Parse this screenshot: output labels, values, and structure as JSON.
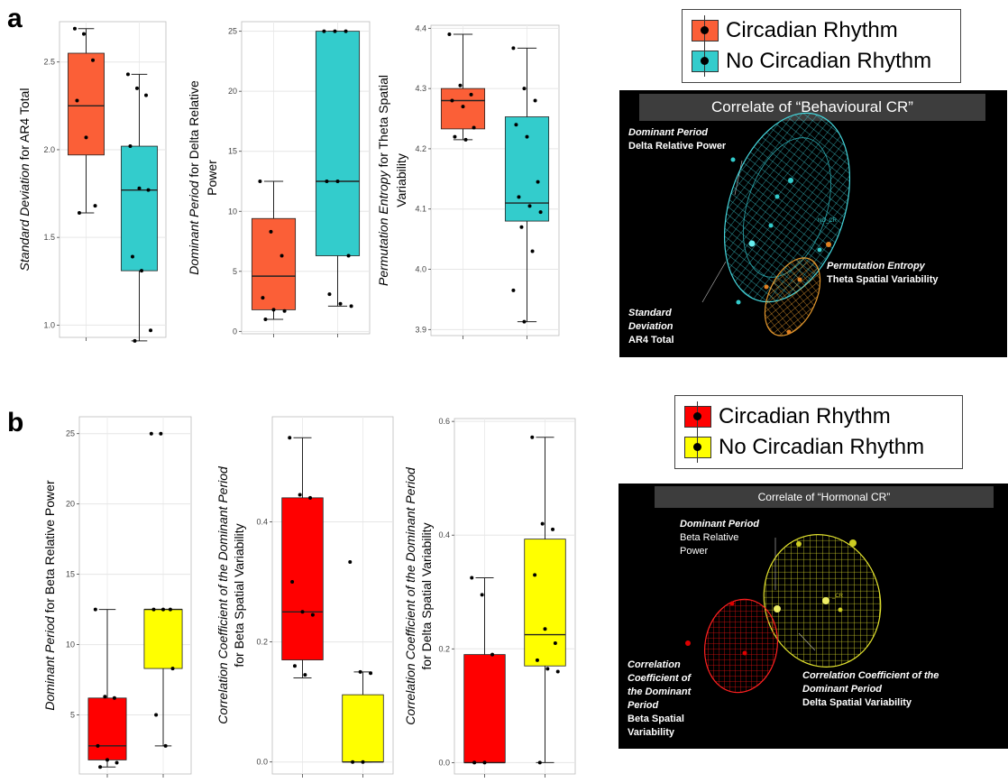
{
  "panels": {
    "a": {
      "letter": "a"
    },
    "b": {
      "letter": "b"
    }
  },
  "colors": {
    "orange": "#fb5f37",
    "teal": "#33cccc",
    "red": "#ff0000",
    "yellow": "#ffff00"
  },
  "legend_a": {
    "items": [
      {
        "label": "Circadian Rhythm",
        "color": "#fb5f37"
      },
      {
        "label": "No Circadian Rhythm",
        "color": "#33cccc"
      }
    ]
  },
  "legend_b": {
    "items": [
      {
        "label": "Circadian Rhythm",
        "color": "#ff0000"
      },
      {
        "label": "No Circadian Rhythm",
        "color": "#ffff00"
      }
    ]
  },
  "viz_a": {
    "title": "Correlate of “Behavioural CR”",
    "label_top_italic": "Dominant Period",
    "label_top": "Delta Relative Power",
    "label_right_italic": "Permutation Entropy",
    "label_right": "Theta Spatial Variability",
    "label_left_italic_1": "Standard",
    "label_left_italic_2": "Deviation",
    "label_left": "AR4 Total",
    "tag": "NO_CR"
  },
  "viz_b": {
    "title": "Correlate of “Hormonal CR”",
    "label_top_italic": "Dominant Period",
    "label_top_1": "Beta Relative",
    "label_top_2": "Power",
    "label_right_italic_1": "Correlation Coefficient of the",
    "label_right_italic_2": "Dominant Period",
    "label_right": "Delta Spatial Variability",
    "label_left_italic_1": "Correlation",
    "label_left_italic_2": "Coefficient of",
    "label_left_italic_3": "the Dominant",
    "label_left_italic_4": "Period",
    "label_left_1": "Beta Spatial",
    "label_left_2": "Variability",
    "tag": "_CR"
  },
  "chart_data": [
    {
      "id": "a1",
      "type": "box",
      "ylabel_italic": "Standard Deviation",
      "ylabel_rest": " for AR4 Total",
      "ylim": [
        0.93,
        2.73
      ],
      "yticks": [
        1.0,
        1.5,
        2.0,
        2.5
      ],
      "tick_labels": [
        "1.0",
        "1.5",
        "2.0",
        "2.5"
      ],
      "series": [
        {
          "color": "#fb5f37",
          "whislo": 1.64,
          "q1": 1.97,
          "med": 2.25,
          "q3": 2.55,
          "whishi": 2.69,
          "points": [
            2.69,
            2.66,
            2.51,
            2.28,
            2.07,
            1.68,
            1.64
          ]
        },
        {
          "color": "#33cccc",
          "whislo": 0.91,
          "q1": 1.31,
          "med": 1.77,
          "q3": 2.02,
          "whishi": 2.43,
          "points": [
            2.43,
            2.35,
            2.31,
            2.02,
            1.78,
            1.77,
            1.39,
            1.31,
            0.97,
            0.91
          ]
        }
      ]
    },
    {
      "id": "a2",
      "type": "box",
      "ylabel_italic": "Dominant Period",
      "ylabel_rest": " for Delta Relative Power",
      "ylim": [
        -0.2,
        25.8
      ],
      "yticks": [
        0,
        5,
        10,
        15,
        20,
        25
      ],
      "tick_labels": [
        "0",
        "5",
        "10",
        "15",
        "20",
        "25"
      ],
      "series": [
        {
          "color": "#fb5f37",
          "whislo": 1.0,
          "q1": 1.8,
          "med": 4.6,
          "q3": 9.4,
          "whishi": 12.5,
          "points": [
            12.5,
            8.3,
            6.3,
            2.8,
            1.8,
            1.7,
            1.0
          ]
        },
        {
          "color": "#33cccc",
          "whislo": 2.1,
          "q1": 6.3,
          "med": 12.5,
          "q3": 25.0,
          "whishi": 25.0,
          "points": [
            25.0,
            25.0,
            25.0,
            12.5,
            12.5,
            6.3,
            3.1,
            2.3,
            2.1
          ]
        }
      ]
    },
    {
      "id": "a3",
      "type": "box",
      "ylabel_italic": "Permutation Entropy",
      "ylabel_rest": " for Theta Spatial Variability",
      "ylim": [
        3.89,
        4.405
      ],
      "yticks": [
        3.9,
        4.0,
        4.1,
        4.2,
        4.3,
        4.4
      ],
      "tick_labels": [
        "3.9",
        "4.0",
        "4.1",
        "4.2",
        "4.3",
        "4.4"
      ],
      "series": [
        {
          "color": "#fb5f37",
          "whislo": 4.215,
          "q1": 4.233,
          "med": 4.28,
          "q3": 4.3,
          "whishi": 4.39,
          "points": [
            4.39,
            4.305,
            4.29,
            4.28,
            4.27,
            4.235,
            4.22,
            4.215
          ]
        },
        {
          "color": "#33cccc",
          "whislo": 3.913,
          "q1": 4.08,
          "med": 4.11,
          "q3": 4.253,
          "whishi": 4.367,
          "points": [
            4.367,
            4.3,
            4.28,
            4.24,
            4.22,
            4.145,
            4.12,
            4.105,
            4.095,
            4.07,
            4.03,
            3.965,
            3.913
          ]
        }
      ]
    },
    {
      "id": "b1",
      "type": "box",
      "ylabel_italic": "Dominant Period",
      "ylabel_rest": " for Beta Relative Power",
      "ylim": [
        0.8,
        26.2
      ],
      "yticks": [
        5,
        10,
        15,
        20,
        25
      ],
      "tick_labels": [
        "5",
        "10",
        "15",
        "20",
        "25"
      ],
      "series": [
        {
          "color": "#ff0000",
          "whislo": 1.3,
          "q1": 1.8,
          "med": 2.8,
          "q3": 6.2,
          "whishi": 12.5,
          "points": [
            12.5,
            6.3,
            6.2,
            2.8,
            1.8,
            1.6,
            1.3
          ]
        },
        {
          "color": "#ffff00",
          "whislo": 2.8,
          "q1": 8.3,
          "med": 12.5,
          "q3": 12.5,
          "whishi": 12.5,
          "points": [
            25.0,
            25.0,
            12.5,
            12.5,
            12.5,
            8.3,
            5.0,
            2.8
          ]
        }
      ]
    },
    {
      "id": "b2",
      "type": "box",
      "ylabel_italic": "Correlation Coefficient of the Dominant Period",
      "ylabel_rest": "",
      "ylabel_line2": "for Beta Spatial Variability",
      "ylim": [
        -0.02,
        0.575
      ],
      "yticks": [
        0.0,
        0.2,
        0.4
      ],
      "tick_labels": [
        "0.0",
        "0.2",
        "0.4"
      ],
      "series": [
        {
          "color": "#ff0000",
          "whislo": 0.14,
          "q1": 0.17,
          "med": 0.25,
          "q3": 0.44,
          "whishi": 0.54,
          "points": [
            0.54,
            0.445,
            0.44,
            0.3,
            0.25,
            0.245,
            0.16,
            0.145
          ]
        },
        {
          "color": "#ffff00",
          "whislo": 0.0,
          "q1": 0.0,
          "med": 0.0,
          "q3": 0.112,
          "whishi": 0.15,
          "points": [
            0.333,
            0.15,
            0.148,
            0.0,
            0.0
          ]
        }
      ]
    },
    {
      "id": "b3",
      "type": "box",
      "ylabel_italic": "Correlation Coefficient of the Dominant Period",
      "ylabel_rest": "",
      "ylabel_line2": "for Delta Spatial Variability",
      "ylim": [
        -0.02,
        0.605
      ],
      "yticks": [
        0.0,
        0.2,
        0.4,
        0.6
      ],
      "tick_labels": [
        "0.0",
        "0.2",
        "0.4",
        "0.6"
      ],
      "series": [
        {
          "color": "#ff0000",
          "whislo": 0.0,
          "q1": 0.0,
          "med": 0.0,
          "q3": 0.19,
          "whishi": 0.325,
          "points": [
            0.325,
            0.295,
            0.19,
            0.0,
            0.0
          ]
        },
        {
          "color": "#ffff00",
          "whislo": 0.0,
          "q1": 0.17,
          "med": 0.225,
          "q3": 0.393,
          "whishi": 0.572,
          "points": [
            0.572,
            0.42,
            0.41,
            0.33,
            0.235,
            0.21,
            0.18,
            0.165,
            0.16,
            0.0
          ]
        }
      ]
    }
  ]
}
